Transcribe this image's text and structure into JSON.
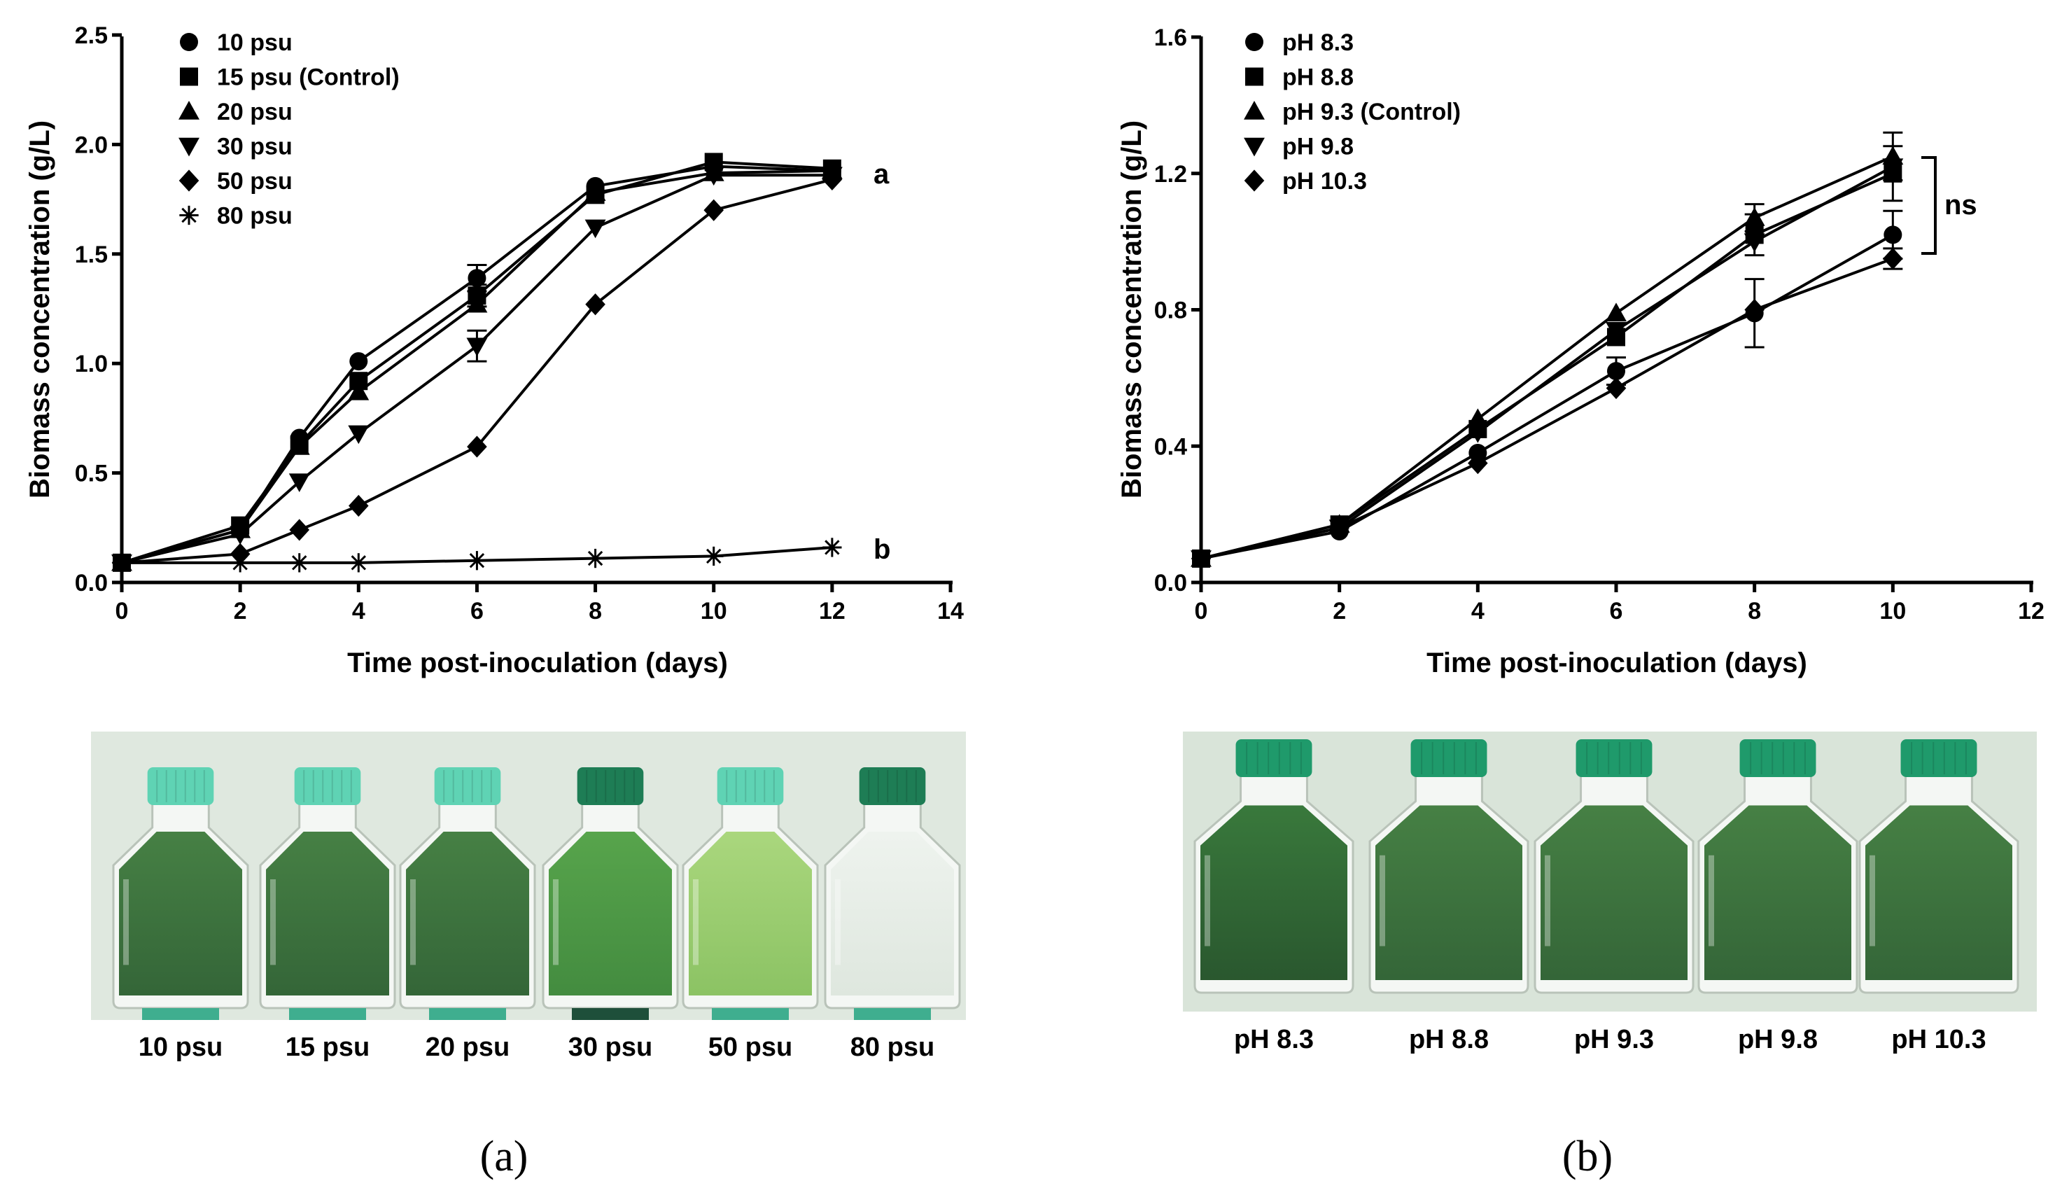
{
  "chart_data": [
    {
      "type": "line",
      "panel_label": "(a)",
      "xlabel": "Time post-inoculation (days)",
      "ylabel": "Biomass concentration (g/L)",
      "xlim": [
        0,
        14
      ],
      "ylim": [
        0,
        2.5
      ],
      "xticks": [
        "0",
        "2",
        "4",
        "6",
        "8",
        "10",
        "12",
        "14"
      ],
      "yticks": [
        "0.0",
        "0.5",
        "1.0",
        "1.5",
        "2.0",
        "2.5"
      ],
      "series": [
        {
          "name": "10 psu",
          "marker": "circle",
          "x": [
            0,
            2,
            3,
            4,
            6,
            8,
            10,
            12
          ],
          "values": [
            0.09,
            0.24,
            0.66,
            1.01,
            1.39,
            1.81,
            1.9,
            1.88
          ],
          "err": [
            0,
            0,
            0,
            0,
            0.06,
            0,
            0,
            0
          ]
        },
        {
          "name": "15 psu (Control)",
          "marker": "square",
          "x": [
            0,
            2,
            3,
            4,
            6,
            8,
            10,
            12
          ],
          "values": [
            0.09,
            0.26,
            0.63,
            0.92,
            1.31,
            1.77,
            1.92,
            1.89
          ],
          "err": [
            0,
            0,
            0,
            0,
            0.05,
            0,
            0,
            0
          ]
        },
        {
          "name": "20 psu",
          "marker": "triangle-up",
          "x": [
            0,
            2,
            3,
            4,
            6,
            8,
            10,
            12
          ],
          "values": [
            0.09,
            0.24,
            0.62,
            0.87,
            1.27,
            1.78,
            1.87,
            1.88
          ],
          "err": [
            0,
            0,
            0,
            0,
            0,
            0,
            0,
            0
          ]
        },
        {
          "name": "30 psu",
          "marker": "triangle-down",
          "x": [
            0,
            2,
            3,
            4,
            6,
            8,
            10,
            12
          ],
          "values": [
            0.09,
            0.22,
            0.46,
            0.68,
            1.08,
            1.62,
            1.86,
            1.86
          ],
          "err": [
            0,
            0,
            0,
            0,
            0.07,
            0,
            0,
            0
          ]
        },
        {
          "name": "50 psu",
          "marker": "diamond",
          "x": [
            0,
            2,
            3,
            4,
            6,
            8,
            10,
            12
          ],
          "values": [
            0.09,
            0.13,
            0.24,
            0.35,
            0.62,
            1.27,
            1.7,
            1.84
          ],
          "err": [
            0,
            0,
            0,
            0,
            0,
            0,
            0,
            0
          ]
        },
        {
          "name": "80 psu",
          "marker": "asterisk",
          "x": [
            0,
            2,
            3,
            4,
            6,
            8,
            10,
            12
          ],
          "values": [
            0.09,
            0.09,
            0.09,
            0.09,
            0.1,
            0.11,
            0.12,
            0.16
          ],
          "err": [
            0,
            0,
            0,
            0,
            0,
            0,
            0,
            0
          ]
        }
      ],
      "annotations": [
        {
          "text": "a",
          "x": 13.1,
          "y": 1.87
        },
        {
          "text": "b",
          "x": 13.1,
          "y": 0.16
        }
      ],
      "photo_labels": [
        "10 psu",
        "15 psu",
        "20 psu",
        "30 psu",
        "50 psu",
        "80 psu"
      ]
    },
    {
      "type": "line",
      "panel_label": "(b)",
      "xlabel": "Time post-inoculation (days)",
      "ylabel": "Biomass concentration (g/L)",
      "xlim": [
        0,
        12
      ],
      "ylim": [
        0,
        1.6
      ],
      "xticks": [
        "0",
        "2",
        "4",
        "6",
        "8",
        "10",
        "12"
      ],
      "yticks": [
        "0.0",
        "0.4",
        "0.8",
        "1.2",
        "1.6"
      ],
      "series": [
        {
          "name": "pH 8.3",
          "marker": "circle",
          "x": [
            0,
            2,
            4,
            6,
            8,
            10
          ],
          "values": [
            0.07,
            0.15,
            0.38,
            0.62,
            0.79,
            1.02
          ],
          "err": [
            0,
            0,
            0,
            0.04,
            0.1,
            0.07
          ]
        },
        {
          "name": "pH 8.8",
          "marker": "square",
          "x": [
            0,
            2,
            4,
            6,
            8,
            10
          ],
          "values": [
            0.07,
            0.17,
            0.45,
            0.72,
            1.02,
            1.2
          ],
          "err": [
            0,
            0,
            0,
            0,
            0.06,
            0.08
          ]
        },
        {
          "name": "pH 9.3 (Control)",
          "marker": "triangle-up",
          "x": [
            0,
            2,
            4,
            6,
            8,
            10
          ],
          "values": [
            0.07,
            0.17,
            0.48,
            0.79,
            1.07,
            1.25
          ],
          "err": [
            0,
            0,
            0,
            0,
            0.04,
            0.07
          ]
        },
        {
          "name": "pH 9.8",
          "marker": "triangle-down",
          "x": [
            0,
            2,
            4,
            6,
            8,
            10
          ],
          "values": [
            0.07,
            0.16,
            0.44,
            0.74,
            1.0,
            1.22
          ],
          "err": [
            0,
            0,
            0,
            0,
            0,
            0
          ]
        },
        {
          "name": "pH 10.3",
          "marker": "diamond",
          "x": [
            0,
            2,
            4,
            6,
            8,
            10
          ],
          "values": [
            0.07,
            0.16,
            0.35,
            0.57,
            0.8,
            0.95
          ],
          "err": [
            0,
            0,
            0,
            0,
            0,
            0.03
          ]
        }
      ],
      "annotations": [
        {
          "text": "ns",
          "x": 10.85,
          "y": 1.11
        }
      ],
      "photo_labels": [
        "pH 8.3",
        "pH 8.8",
        "pH 9.3",
        "pH 9.8",
        "pH 10.3"
      ]
    }
  ],
  "colors": {
    "ink": "#000000",
    "photo_bg": "#dfe8df",
    "culture_dark": "#2f6b34",
    "culture_mid": "#3f8f3c",
    "culture_light": "#9ccf6a",
    "cap_light": "#5fd3b4",
    "cap_dark": "#1e7d55"
  }
}
